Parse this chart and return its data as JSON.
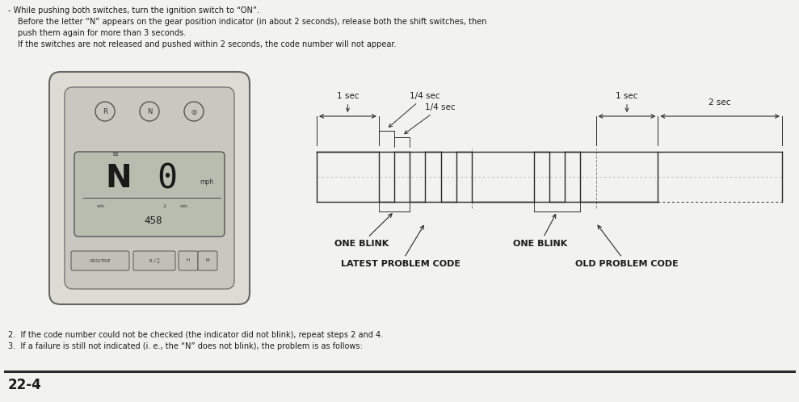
{
  "bg_color": "#f2f2ee",
  "text_color": "#1a1a1a",
  "line_color": "#2a2a2a",
  "header_text_line1": "- While pushing both switches, turn the ignition switch to “ON”.",
  "header_text_line2": "Before the letter “N” appears on the gear position indicator (in about 2 seconds), release both the shift switches, then",
  "header_text_line3": "push them again for more than 3 seconds.",
  "header_text_line4": "If the switches are not released and pushed within 2 seconds, the code number will not appear.",
  "footer_line1": "2.  If the code number could not be checked (the indicator did not blink), repeat steps 2 and 4.",
  "footer_line2": "3.  If a failure is still not indicated (i. e., the “N” does not blink), the problem is as follows:",
  "page_label": "22-4",
  "label_1sec_left": "1 sec",
  "label_quarter1": "1/4 sec",
  "label_quarter2": "1/4 sec",
  "label_1sec_right": "1 sec",
  "label_2sec": "2 sec",
  "label_one_blink_left": "ONE BLINK",
  "label_one_blink_right": "ONE BLINK",
  "label_latest": "LATEST PROBLEM CODE",
  "label_old": "OLD PROBLEM CODE"
}
